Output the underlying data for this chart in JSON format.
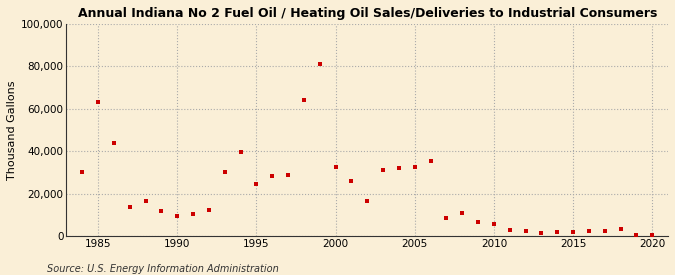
{
  "title": "Annual Indiana No 2 Fuel Oil / Heating Oil Sales/Deliveries to Industrial Consumers",
  "ylabel": "Thousand Gallons",
  "source": "Source: U.S. Energy Information Administration",
  "background_color": "#faefd7",
  "marker_color": "#cc0000",
  "xlim": [
    1983,
    2021
  ],
  "ylim": [
    0,
    100000
  ],
  "yticks": [
    0,
    20000,
    40000,
    60000,
    80000,
    100000
  ],
  "ytick_labels": [
    "0",
    "20,000",
    "40,000",
    "60,000",
    "80,000",
    "100,000"
  ],
  "xticks": [
    1985,
    1990,
    1995,
    2000,
    2005,
    2010,
    2015,
    2020
  ],
  "years": [
    1984,
    1985,
    1986,
    1987,
    1988,
    1989,
    1990,
    1991,
    1992,
    1993,
    1994,
    1995,
    1996,
    1997,
    1998,
    1999,
    2000,
    2001,
    2002,
    2003,
    2004,
    2005,
    2006,
    2007,
    2008,
    2009,
    2010,
    2011,
    2012,
    2013,
    2014,
    2015,
    2016,
    2017,
    2018,
    2019,
    2020
  ],
  "values": [
    30000,
    63000,
    44000,
    13500,
    16500,
    12000,
    9500,
    10500,
    12500,
    30000,
    39500,
    24500,
    28500,
    29000,
    64000,
    81000,
    32500,
    26000,
    16500,
    31000,
    32000,
    32500,
    35500,
    8500,
    11000,
    6500,
    5500,
    3000,
    2500,
    1500,
    2000,
    2000,
    2500,
    2500,
    3500,
    500,
    500
  ]
}
